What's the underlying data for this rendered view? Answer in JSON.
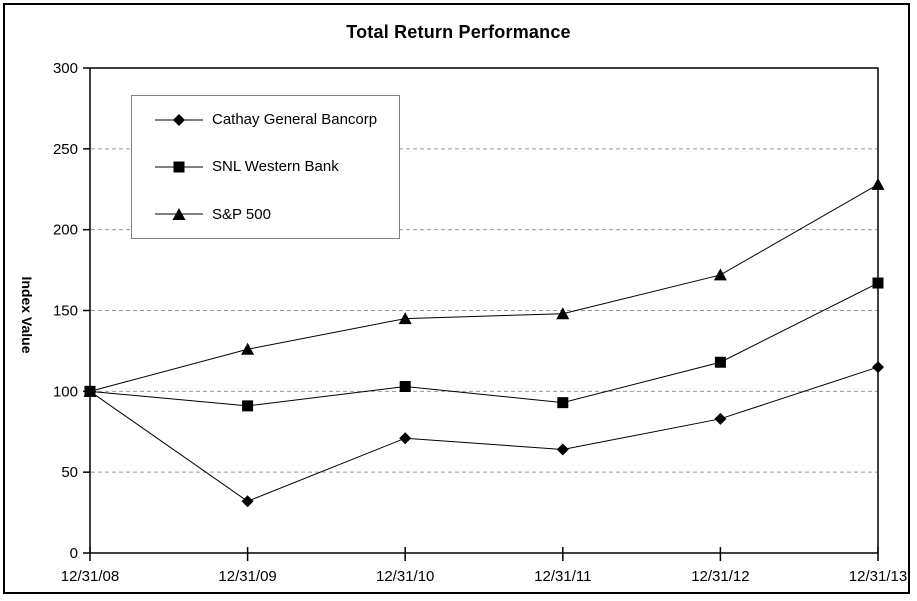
{
  "figure": {
    "title": "Total Return Performance"
  },
  "chart_data": {
    "type": "line",
    "title": "Total Return Performance",
    "xlabel": "",
    "ylabel": "Index Value",
    "ylim": [
      0,
      300
    ],
    "ytick_step": 50,
    "yticks": [
      0,
      50,
      100,
      150,
      200,
      250,
      300
    ],
    "grid": "horizontal dashed gridlines at 50, 100, 150, 200, 250",
    "legend_position": "upper left inside plot area",
    "categories": [
      "12/31/08",
      "12/31/09",
      "12/31/10",
      "12/31/11",
      "12/31/12",
      "12/31/13"
    ],
    "series": [
      {
        "name": "Cathay General Bancorp",
        "marker": "diamond",
        "values": [
          100,
          32,
          71,
          64,
          83,
          115
        ]
      },
      {
        "name": "SNL Western Bank",
        "marker": "square",
        "values": [
          100,
          91,
          103,
          93,
          118,
          167
        ]
      },
      {
        "name": "S&P 500",
        "marker": "triangle",
        "values": [
          100,
          126,
          145,
          148,
          172,
          228
        ]
      }
    ],
    "colors": {
      "series_line": "#000000",
      "marker_fill": "#000000",
      "gridline": "#999999",
      "axis": "#000000",
      "text": "#000000",
      "legend_border": "#808080",
      "background": "#ffffff"
    }
  }
}
